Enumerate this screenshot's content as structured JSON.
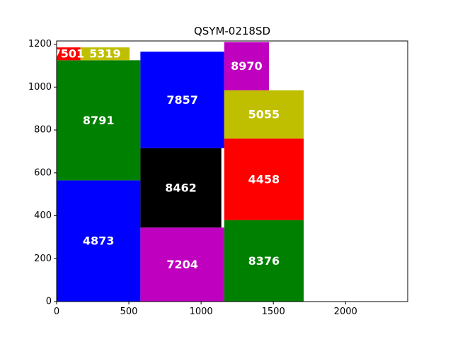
{
  "chart_data": {
    "type": "bar",
    "subtype": "packed-rectangles",
    "title": "QSYM-0218SD",
    "xlabel": "",
    "ylabel": "",
    "xlim": [
      0,
      2430
    ],
    "ylim": [
      0,
      1215
    ],
    "xticks": [
      0,
      500,
      1000,
      1500,
      2000
    ],
    "yticks": [
      0,
      200,
      400,
      600,
      800,
      1000,
      1200
    ],
    "grid": false,
    "legend": "none",
    "rects": [
      {
        "label": "4873",
        "value": 4873,
        "x": [
          0,
          580
        ],
        "y": [
          0,
          565
        ],
        "color": "#0000ff"
      },
      {
        "label": "8791",
        "value": 8791,
        "x": [
          0,
          580
        ],
        "y": [
          565,
          1125
        ],
        "color": "#008000"
      },
      {
        "label": "7501",
        "value": 7501,
        "x": [
          0,
          165
        ],
        "y": [
          1125,
          1185
        ],
        "color": "#ff0000"
      },
      {
        "label": "5319",
        "value": 5319,
        "x": [
          165,
          505
        ],
        "y": [
          1125,
          1185
        ],
        "color": "#bfbf00"
      },
      {
        "label": "7204",
        "value": 7204,
        "x": [
          580,
          1160
        ],
        "y": [
          0,
          345
        ],
        "color": "#bf00bf"
      },
      {
        "label": "8462",
        "value": 8462,
        "x": [
          580,
          1140
        ],
        "y": [
          345,
          715
        ],
        "color": "#000000"
      },
      {
        "label": "7857",
        "value": 7857,
        "x": [
          580,
          1160
        ],
        "y": [
          715,
          1165
        ],
        "color": "#0000ff"
      },
      {
        "label": "8376",
        "value": 8376,
        "x": [
          1160,
          1710
        ],
        "y": [
          0,
          380
        ],
        "color": "#008000"
      },
      {
        "label": "4458",
        "value": 4458,
        "x": [
          1160,
          1710
        ],
        "y": [
          380,
          760
        ],
        "color": "#ff0000"
      },
      {
        "label": "5055",
        "value": 5055,
        "x": [
          1160,
          1710
        ],
        "y": [
          760,
          985
        ],
        "color": "#bfbf00"
      },
      {
        "label": "8970",
        "value": 8970,
        "x": [
          1160,
          1470
        ],
        "y": [
          985,
          1210
        ],
        "color": "#bf00bf"
      }
    ]
  }
}
